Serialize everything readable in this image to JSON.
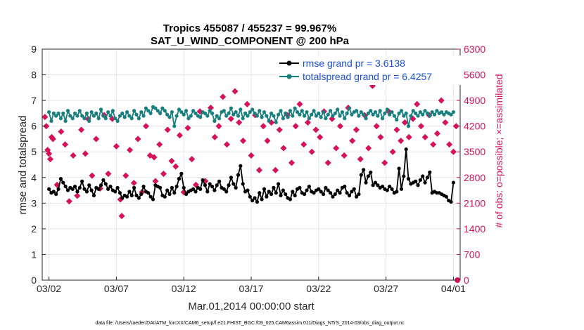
{
  "chart_data": {
    "type": "line",
    "title": "Tropics 455087 / 455237 = 99.967%",
    "subtitle": "SAT_U_WIND_COMPONENT @ 200 hPa",
    "xlabel": "Mar.01,2014 00:00:00 start",
    "ylabel": "rmse and totalspread",
    "y2label": "# of obs: o=possible; ×=assimilated",
    "footer": "data file: /Users/raeder/DAI/ATM_forcXX/CAM6_setup/f.e21.FHIST_BGC.f09_025.CAM6assim.011/Diags_NTrS_2014-03/obs_diag_output.nc",
    "xlim": [
      0.5,
      31.5
    ],
    "ylim": [
      0,
      9
    ],
    "y2lim": [
      0,
      6300
    ],
    "x_ticks": [
      1,
      6,
      11,
      16,
      21,
      26,
      31
    ],
    "x_tick_labels": [
      "03/02",
      "03/07",
      "03/12",
      "03/17",
      "03/22",
      "03/27",
      "04/01"
    ],
    "y_ticks": [
      "0",
      "1",
      "2",
      "3",
      "4",
      "5",
      "6",
      "7",
      "8",
      "9"
    ],
    "y2_ticks": [
      "0",
      "700",
      "1400",
      "2100",
      "2800",
      "3500",
      "4200",
      "4900",
      "5600",
      "6300"
    ],
    "grid": true,
    "legend_position": "top-right",
    "rmse_label": "rmse grand pr = 3.6138",
    "spread_label": "totalspread grand pr = 6.4257",
    "colors": {
      "rmse": "#000000",
      "spread": "#17807e",
      "obs": "#d6125a",
      "legend_text": "#1a4fd6"
    },
    "rmse": [
      3.55,
      3.4,
      3.45,
      3.35,
      3.55,
      3.95,
      3.8,
      3.65,
      3.5,
      3.6,
      3.55,
      3.65,
      3.45,
      3.6,
      3.85,
      3.55,
      3.45,
      3.7,
      3.5,
      3.3,
      3.6,
      3.55,
      3.7,
      3.9,
      3.75,
      3.55,
      3.65,
      3.5,
      3.45,
      3.6,
      3.4,
      3.2,
      3.3,
      3.25,
      3.45,
      3.3,
      3.6,
      3.3,
      3.2,
      3.35,
      3.65,
      3.45,
      3.4,
      3.25,
      3.15,
      3.7,
      3.65,
      3.6,
      3.3,
      3.25,
      3.5,
      3.35,
      3.6,
      3.4,
      3.65,
      3.95,
      4.15,
      3.6,
      3.35,
      3.45,
      3.5,
      3.55,
      3.45,
      3.6,
      3.55,
      3.9,
      3.7,
      3.45,
      3.75,
      3.65,
      3.5,
      3.7,
      3.85,
      3.6,
      3.55,
      3.45,
      3.7,
      4.0,
      3.75,
      3.6,
      4.1,
      4.45,
      3.75,
      3.45,
      3.5,
      3.25,
      3.1,
      3.2,
      3.05,
      3.4,
      3.15,
      3.55,
      3.25,
      3.45,
      3.35,
      3.6,
      3.4,
      3.75,
      3.3,
      3.5,
      3.35,
      3.2,
      3.15,
      3.45,
      3.3,
      3.55,
      3.6,
      3.4,
      3.35,
      3.5,
      3.65,
      3.45,
      3.4,
      3.5,
      3.55,
      3.45,
      3.35,
      3.6,
      3.5,
      3.4,
      3.25,
      3.35,
      3.5,
      3.4,
      3.6,
      3.65,
      3.4,
      3.3,
      3.45,
      3.55,
      3.25,
      3.35,
      4.1,
      4.3,
      3.8,
      4.05,
      4.2,
      3.7,
      3.8,
      3.7,
      3.6,
      3.65,
      3.55,
      3.5,
      3.65,
      3.55,
      3.4,
      3.45,
      4.35,
      3.55,
      4.05,
      5.1,
      3.95,
      3.75,
      3.8,
      3.85,
      3.7,
      3.9,
      4.05,
      3.8,
      4.0,
      4.2,
      3.4,
      3.45,
      3.4,
      3.4,
      3.35,
      3.3,
      3.25,
      3.1,
      3.05,
      3.8
    ],
    "totalspread": [
      6.55,
      6.2,
      6.5,
      6.4,
      6.5,
      6.3,
      6.5,
      6.2,
      6.6,
      6.4,
      6.3,
      6.5,
      6.4,
      6.6,
      6.4,
      6.3,
      6.5,
      6.2,
      6.55,
      6.4,
      6.5,
      6.3,
      6.65,
      6.4,
      6.3,
      6.55,
      6.4,
      6.6,
      6.3,
      6.2,
      6.4,
      6.5,
      6.35,
      6.55,
      6.4,
      6.3,
      6.6,
      6.45,
      6.3,
      6.55,
      6.4,
      6.7,
      6.6,
      6.5,
      6.75,
      6.7,
      6.6,
      6.5,
      6.7,
      6.6,
      6.45,
      6.35,
      6.55,
      6.0,
      6.4,
      6.65,
      6.55,
      6.45,
      6.6,
      6.3,
      6.4,
      6.6,
      6.5,
      6.4,
      6.35,
      6.55,
      6.5,
      6.4,
      6.6,
      6.5,
      6.2,
      6.4,
      6.3,
      6.55,
      6.6,
      6.4,
      6.5,
      6.7,
      6.45,
      6.55,
      6.4,
      6.65,
      6.3,
      6.5,
      6.4,
      6.55,
      6.65,
      6.5,
      6.4,
      6.6,
      6.35,
      6.55,
      6.4,
      6.2,
      6.5,
      6.4,
      6.15,
      6.45,
      6.6,
      6.3,
      6.5,
      6.35,
      6.6,
      6.4,
      6.7,
      6.55,
      6.45,
      6.6,
      6.4,
      6.55,
      6.3,
      6.45,
      6.6,
      6.4,
      6.5,
      6.35,
      6.55,
      6.3,
      6.45,
      6.6,
      6.4,
      6.5,
      6.65,
      6.4,
      6.55,
      6.3,
      6.5,
      6.7,
      6.45,
      6.55,
      6.6,
      6.4,
      6.55,
      6.45,
      6.3,
      6.5,
      6.6,
      6.45,
      6.55,
      6.4,
      6.6,
      6.3,
      6.5,
      6.65,
      6.45,
      6.55,
      6.4,
      6.25,
      6.5,
      6.6,
      6.4,
      6.5,
      6.0,
      6.4,
      6.6,
      6.5,
      6.4,
      6.55,
      6.45,
      6.6,
      6.5,
      6.4,
      6.55,
      6.45,
      6.6,
      6.5,
      6.55,
      6.45,
      6.55,
      6.5,
      6.45,
      6.55
    ],
    "obs_assimilated": [
      [
        0.7,
        4450
      ],
      [
        0.8,
        4200
      ],
      [
        0.9,
        3550
      ],
      [
        1.0,
        3450
      ],
      [
        1.1,
        3300
      ],
      [
        1.2,
        3900
      ],
      [
        1.3,
        3850
      ],
      [
        1.6,
        2600
      ],
      [
        1.9,
        4050
      ],
      [
        2.2,
        3700
      ],
      [
        2.5,
        2150
      ],
      [
        2.8,
        3400
      ],
      [
        3.1,
        2300
      ],
      [
        3.4,
        4100
      ],
      [
        3.7,
        3450
      ],
      [
        3.9,
        4400
      ],
      [
        4.2,
        2850
      ],
      [
        4.5,
        3850
      ],
      [
        4.8,
        2500
      ],
      [
        5.1,
        4500
      ],
      [
        5.4,
        2900
      ],
      [
        5.7,
        4400
      ],
      [
        6.0,
        3650
      ],
      [
        6.3,
        2200
      ],
      [
        6.4,
        1750
      ],
      [
        6.7,
        2850
      ],
      [
        7.0,
        3550
      ],
      [
        7.3,
        2650
      ],
      [
        7.6,
        3850
      ],
      [
        7.9,
        2400
      ],
      [
        8.2,
        4200
      ],
      [
        8.5,
        3400
      ],
      [
        8.8,
        3350
      ],
      [
        8.9,
        2700
      ],
      [
        9.2,
        3700
      ],
      [
        9.5,
        2900
      ],
      [
        9.8,
        4100
      ],
      [
        10.1,
        3250
      ],
      [
        10.4,
        3100
      ],
      [
        10.7,
        3950
      ],
      [
        11.0,
        2400
      ],
      [
        11.3,
        4150
      ],
      [
        11.6,
        3300
      ],
      [
        11.9,
        2600
      ],
      [
        12.2,
        4600
      ],
      [
        12.6,
        2700
      ],
      [
        13.0,
        4700
      ],
      [
        13.3,
        3900
      ],
      [
        13.6,
        4200
      ],
      [
        13.9,
        5000
      ],
      [
        14.2,
        3700
      ],
      [
        14.5,
        4400
      ],
      [
        14.8,
        5150
      ],
      [
        15.1,
        4300
      ],
      [
        15.4,
        3800
      ],
      [
        15.7,
        4800
      ],
      [
        16.0,
        3400
      ],
      [
        16.3,
        4500
      ],
      [
        16.6,
        3000
      ],
      [
        16.9,
        4200
      ],
      [
        17.2,
        3800
      ],
      [
        17.5,
        4300
      ],
      [
        17.8,
        3000
      ],
      [
        18.1,
        4100
      ],
      [
        18.4,
        3600
      ],
      [
        18.7,
        4500
      ],
      [
        19.0,
        3200
      ],
      [
        19.3,
        4200
      ],
      [
        19.6,
        4800
      ],
      [
        19.9,
        3700
      ],
      [
        20.2,
        4300
      ],
      [
        20.5,
        3500
      ],
      [
        20.8,
        4100
      ],
      [
        21.1,
        3900
      ],
      [
        21.4,
        4600
      ],
      [
        21.7,
        3200
      ],
      [
        22.0,
        4400
      ],
      [
        22.3,
        3600
      ],
      [
        22.6,
        4200
      ],
      [
        22.9,
        3400
      ],
      [
        23.2,
        4700
      ],
      [
        23.5,
        3800
      ],
      [
        23.8,
        4100
      ],
      [
        24.1,
        3300
      ],
      [
        24.4,
        4500
      ],
      [
        24.7,
        3600
      ],
      [
        25.0,
        5300
      ],
      [
        25.3,
        4200
      ],
      [
        25.6,
        3900
      ],
      [
        25.9,
        3200
      ],
      [
        26.2,
        4600
      ],
      [
        26.5,
        3500
      ],
      [
        26.8,
        4100
      ],
      [
        27.1,
        3800
      ],
      [
        27.4,
        4300
      ],
      [
        27.7,
        3900
      ],
      [
        28.0,
        4400
      ],
      [
        28.3,
        4800
      ],
      [
        28.6,
        4200
      ],
      [
        28.9,
        3900
      ],
      [
        29.2,
        4500
      ],
      [
        29.5,
        3700
      ],
      [
        29.8,
        4000
      ],
      [
        30.1,
        4900
      ],
      [
        30.4,
        4300
      ],
      [
        30.7,
        3700
      ],
      [
        31.0,
        3500
      ],
      [
        31.2,
        4200
      ]
    ],
    "obs_possible_last": [
      31.3,
      0
    ]
  }
}
